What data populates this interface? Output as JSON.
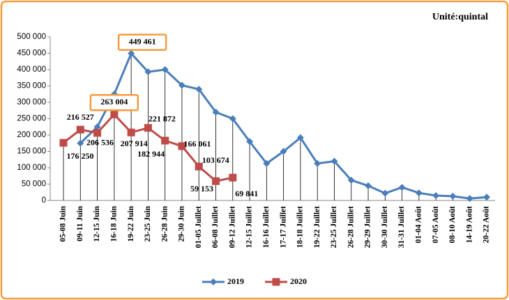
{
  "chart_data": {
    "type": "line",
    "title": "Unité:quintal",
    "categories": [
      "05-08 Juin",
      "09-11 Juin",
      "12-15 Juin",
      "16-18 Juin",
      "19-22 Juin",
      "23-25 Juin",
      "26-28 Juin",
      "29-30 Juin",
      "01-05 Juillet",
      "06-08 Juillet",
      "09-12 Juillet",
      "12-15 Juillet",
      "16-16 Juillet",
      "17-17 Juillet",
      "18-18 Juillet",
      "19-22 Juillet",
      "23-25 Juillet",
      "26-28 Juillet",
      "29-29 Juillet",
      "30-30 Juillet",
      "31-31 Juillet",
      "01-04 Août",
      "07-05 Août",
      "08-10 Août",
      "14-19 Août",
      "20-22 Août"
    ],
    "series": [
      {
        "name": "2019",
        "color": "#4a7ebb",
        "values": [
          null,
          175000,
          225000,
          325000,
          449461,
          393000,
          400000,
          352000,
          340000,
          270000,
          250000,
          180000,
          113000,
          150000,
          192000,
          113000,
          120000,
          62000,
          45000,
          22000,
          40000,
          23000,
          15000,
          13000,
          6000,
          10000
        ],
        "value_labels": [
          null,
          null,
          null,
          null,
          "449 461",
          null,
          null,
          null,
          null,
          null,
          null,
          null,
          null,
          null,
          null,
          null,
          null,
          null,
          null,
          null,
          null,
          null,
          null,
          null,
          null,
          null
        ]
      },
      {
        "name": "2020",
        "color": "#be4b48",
        "values": [
          176250,
          216527,
          206536,
          263004,
          207914,
          221872,
          182944,
          166061,
          103674,
          59153,
          69841,
          null,
          null,
          null,
          null,
          null,
          null,
          null,
          null,
          null,
          null,
          null,
          null,
          null,
          null,
          null
        ],
        "value_labels": [
          "176 250",
          "216 527",
          "206 536",
          "263 004",
          "207 914",
          "221 872",
          "182 944",
          "166 061",
          "103 674",
          "59 153",
          "69 841",
          null,
          null,
          null,
          null,
          null,
          null,
          null,
          null,
          null,
          null,
          null,
          null,
          null,
          null,
          null
        ]
      }
    ],
    "ylim": [
      0,
      500000
    ],
    "yticks": [
      0,
      {
        "value": 50000,
        "label": "50 000"
      },
      {
        "value": 100000,
        "label": "100 000"
      },
      {
        "value": 150000,
        "label": "150 000"
      },
      {
        "value": 200000,
        "label": "200 000"
      },
      {
        "value": 250000,
        "label": "250 000"
      },
      {
        "value": 300000,
        "label": "300 000"
      },
      {
        "value": 350000,
        "label": "350 000"
      },
      {
        "value": 400000,
        "label": "400 000"
      },
      {
        "value": 450000,
        "label": "450 000"
      },
      {
        "value": 500000,
        "label": "500 000"
      }
    ],
    "grid": false,
    "legend": "bottom"
  }
}
